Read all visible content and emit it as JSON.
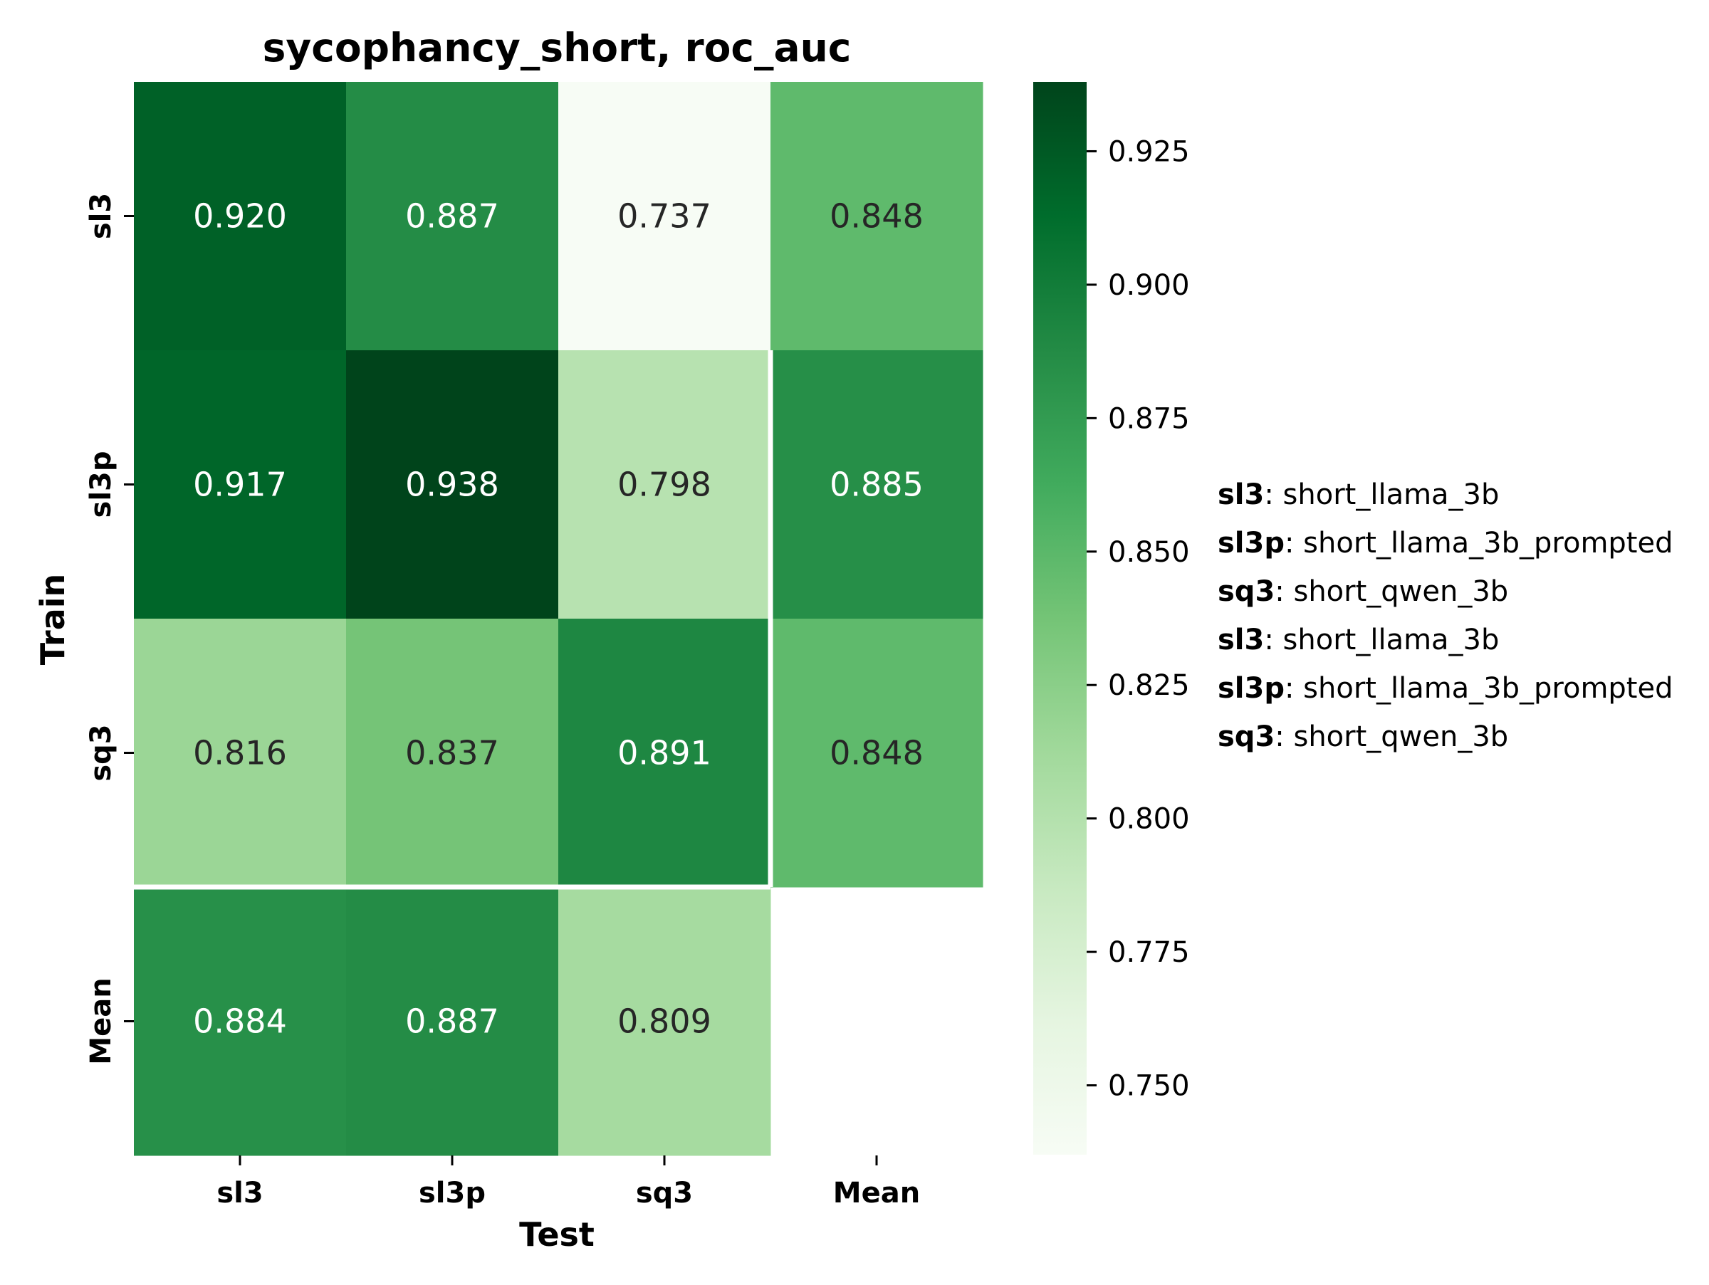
{
  "chart_data": {
    "type": "heatmap",
    "title": "sycophancy_short, roc_auc",
    "xlabel": "Test",
    "ylabel": "Train",
    "x_categories": [
      "sl3",
      "sl3p",
      "sq3",
      "Mean"
    ],
    "y_categories": [
      "sl3",
      "sl3p",
      "sq3",
      "Mean"
    ],
    "values": [
      [
        0.92,
        0.887,
        0.737,
        0.848
      ],
      [
        0.917,
        0.938,
        0.798,
        0.885
      ],
      [
        0.816,
        0.837,
        0.891,
        0.848
      ],
      [
        0.884,
        0.887,
        0.809,
        null
      ]
    ],
    "colormap": "Greens",
    "colorbar": {
      "vmin": 0.737,
      "vmax": 0.938,
      "ticks": [
        0.75,
        0.775,
        0.8,
        0.825,
        0.85,
        0.875,
        0.9,
        0.925
      ],
      "tick_labels": [
        "0.750",
        "0.775",
        "0.800",
        "0.825",
        "0.850",
        "0.875",
        "0.900",
        "0.925"
      ]
    },
    "legend": [
      {
        "abbr": "sl3",
        "full": "short_llama_3b"
      },
      {
        "abbr": "sl3p",
        "full": "short_llama_3b_prompted"
      },
      {
        "abbr": "sq3",
        "full": "short_qwen_3b"
      },
      {
        "abbr": "sl3",
        "full": "short_llama_3b"
      },
      {
        "abbr": "sl3p",
        "full": "short_llama_3b_prompted"
      },
      {
        "abbr": "sq3",
        "full": "short_qwen_3b"
      }
    ],
    "legend_position": "right",
    "grid": false
  }
}
